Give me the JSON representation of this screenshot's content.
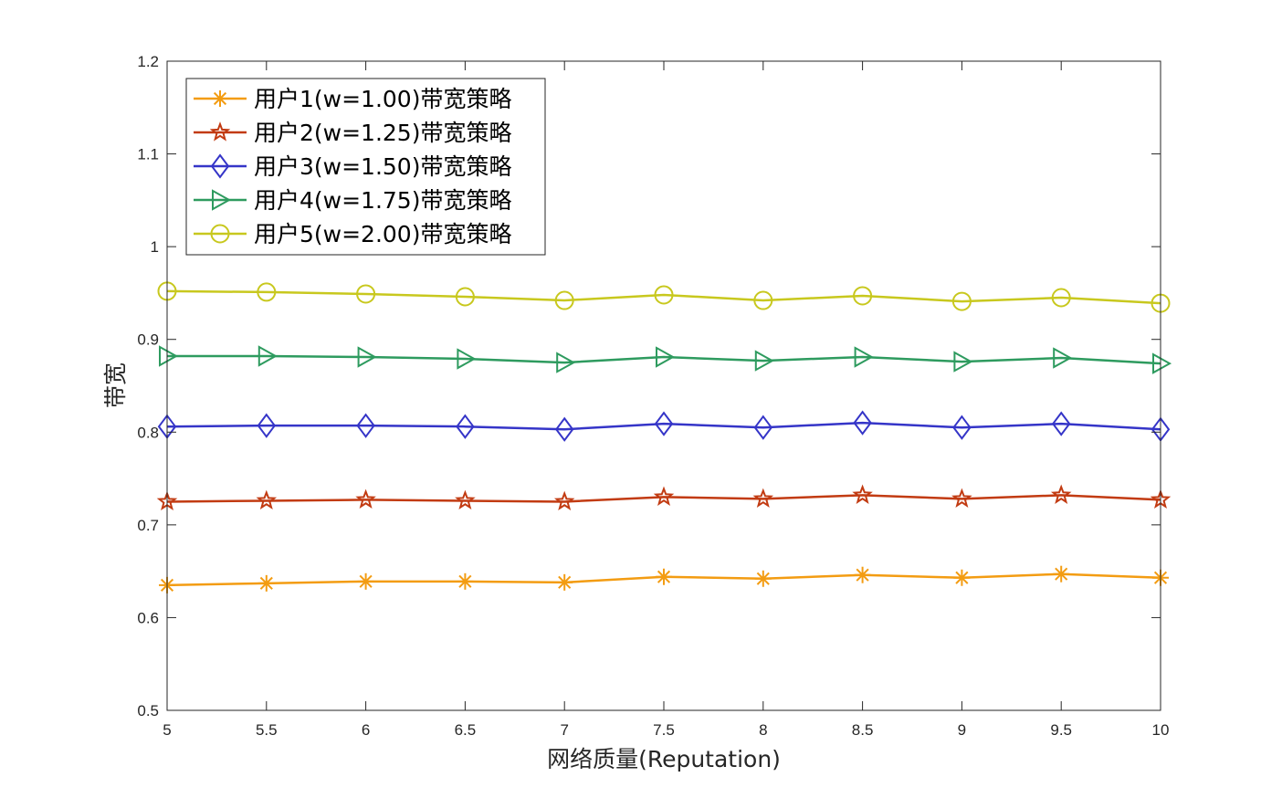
{
  "chart_data": {
    "type": "line",
    "title": "",
    "xlabel": "网络质量(Reputation)",
    "ylabel": "带宽",
    "xlim": [
      5,
      10
    ],
    "ylim": [
      0.5,
      1.2
    ],
    "grid": false,
    "legend_position": "top-left",
    "x": [
      5,
      5.5,
      6,
      6.5,
      7,
      7.5,
      8,
      8.5,
      9,
      9.5,
      10
    ],
    "x_tick_labels": [
      "5",
      "5.5",
      "6",
      "6.5",
      "7",
      "7.5",
      "8",
      "8.5",
      "9",
      "9.5",
      "10"
    ],
    "y_ticks": [
      0.5,
      0.6,
      0.7,
      0.8,
      0.9,
      1.0,
      1.1,
      1.2
    ],
    "y_tick_labels": [
      "0.5",
      "0.6",
      "0.7",
      "0.8",
      "0.9",
      "1",
      "1.1",
      "1.2"
    ],
    "series": [
      {
        "name": "用户1(w=1.00)带宽策略",
        "color": "#f39c12",
        "marker": "asterisk",
        "values": [
          0.635,
          0.637,
          0.639,
          0.639,
          0.638,
          0.644,
          0.642,
          0.646,
          0.643,
          0.647,
          0.643
        ]
      },
      {
        "name": "用户2(w=1.25)带宽策略",
        "color": "#c23b12",
        "marker": "star",
        "values": [
          0.725,
          0.726,
          0.727,
          0.726,
          0.725,
          0.73,
          0.728,
          0.732,
          0.728,
          0.732,
          0.727
        ]
      },
      {
        "name": "用户3(w=1.50)带宽策略",
        "color": "#3535c8",
        "marker": "diamond",
        "values": [
          0.806,
          0.807,
          0.807,
          0.806,
          0.803,
          0.809,
          0.805,
          0.81,
          0.805,
          0.809,
          0.803
        ]
      },
      {
        "name": "用户4(w=1.75)带宽策略",
        "color": "#2e9b5f",
        "marker": "triangle-right",
        "values": [
          0.882,
          0.882,
          0.881,
          0.879,
          0.875,
          0.881,
          0.877,
          0.881,
          0.876,
          0.88,
          0.874
        ]
      },
      {
        "name": "用户5(w=2.00)带宽策略",
        "color": "#c8c81e",
        "marker": "circle",
        "values": [
          0.952,
          0.951,
          0.949,
          0.946,
          0.942,
          0.948,
          0.942,
          0.947,
          0.941,
          0.945,
          0.939
        ]
      }
    ]
  }
}
